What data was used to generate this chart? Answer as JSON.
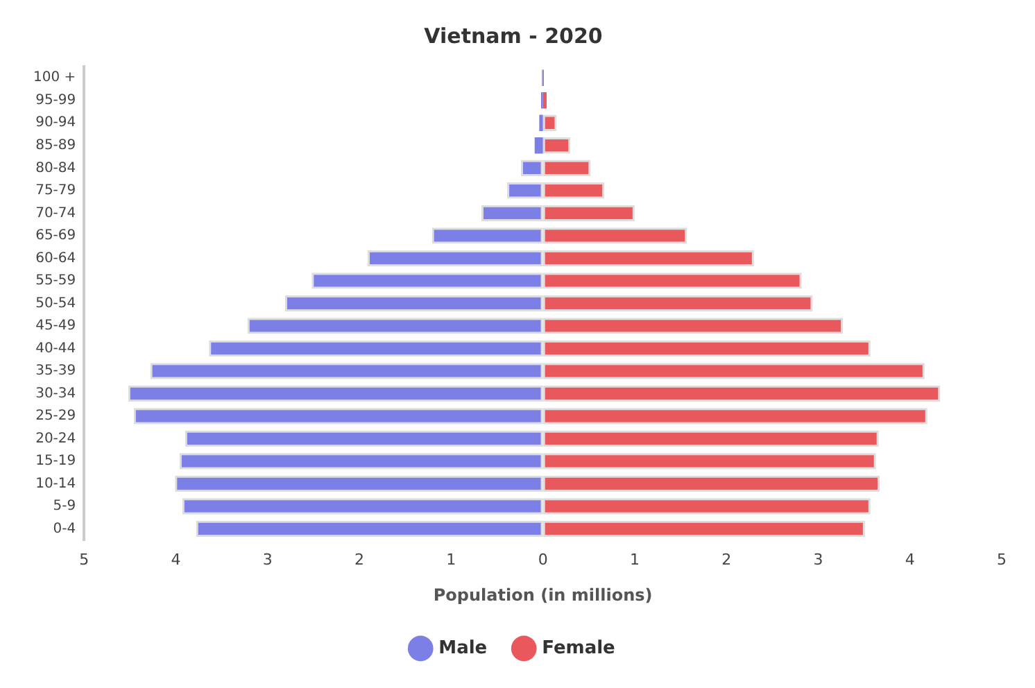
{
  "chart_data": {
    "type": "bar",
    "title": "Vietnam - 2020",
    "xlabel": "Population (in millions)",
    "orientation": "horizontal",
    "stacked": true,
    "legend": "bottom",
    "categories": [
      "100 +",
      "95-99",
      "90-94",
      "85-89",
      "80-84",
      "75-79",
      "70-74",
      "65-69",
      "60-64",
      "55-59",
      "50-54",
      "45-49",
      "40-44",
      "35-39",
      "30-34",
      "25-29",
      "20-24",
      "15-19",
      "10-14",
      "5-9",
      "0-4"
    ],
    "series": [
      {
        "name": "Male",
        "color": "#7b7fe6",
        "values": [
          -0.01,
          -0.02,
          -0.04,
          -0.09,
          -0.24,
          -0.39,
          -0.67,
          -1.21,
          -1.91,
          -2.52,
          -2.81,
          -3.22,
          -3.64,
          -4.28,
          -4.52,
          -4.46,
          -3.9,
          -3.96,
          -4.01,
          -3.93,
          -3.78
        ]
      },
      {
        "name": "Female",
        "color": "#e8585c",
        "values": [
          0.01,
          0.04,
          0.15,
          0.3,
          0.52,
          0.67,
          1.0,
          1.57,
          2.3,
          2.82,
          2.94,
          3.27,
          3.57,
          4.16,
          4.33,
          4.19,
          3.66,
          3.63,
          3.67,
          3.57,
          3.51
        ]
      }
    ],
    "xlim": [
      -5,
      5
    ],
    "xticks": [
      {
        "value": -5,
        "label": "5"
      },
      {
        "value": -4,
        "label": "4"
      },
      {
        "value": -3,
        "label": "3"
      },
      {
        "value": -2,
        "label": "2"
      },
      {
        "value": -1,
        "label": "1"
      },
      0,
      1,
      2,
      3,
      4,
      5
    ]
  }
}
